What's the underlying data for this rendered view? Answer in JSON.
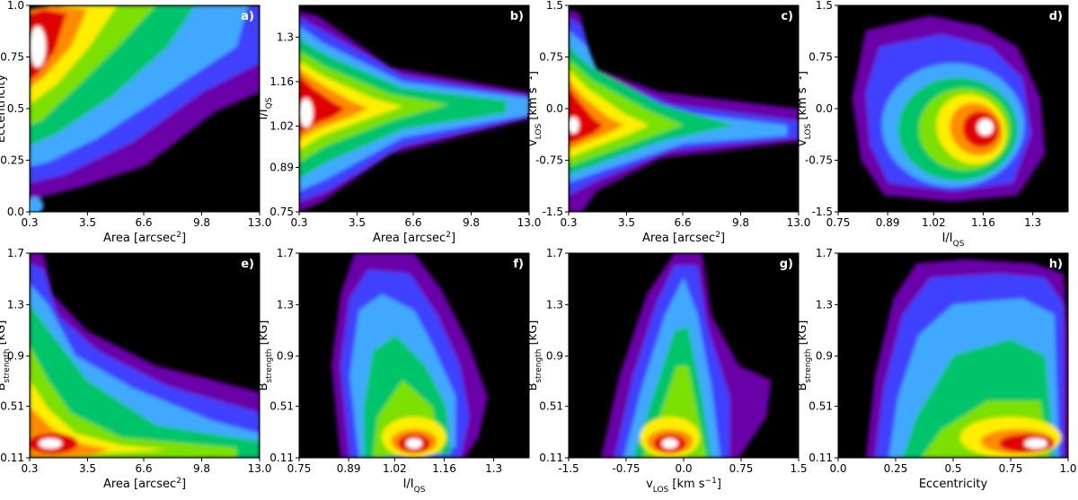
{
  "figure": {
    "colormap": [
      "#000000",
      "#6a00a8",
      "#3f3fff",
      "#3fa9ff",
      "#00c46a",
      "#7be000",
      "#ffee00",
      "#ff8c00",
      "#e00000",
      "#ffffff"
    ]
  },
  "chart_data": [
    {
      "panel_label": "a)",
      "type": "heatmap",
      "xlabel": {
        "main": "Area [arcsec",
        "sup": "2",
        "end": "]"
      },
      "ylabel": {
        "main": "Eccentricity"
      },
      "xlim": [
        0.3,
        13.0
      ],
      "ylim": [
        0.0,
        1.0
      ],
      "xticks": [
        0.3,
        3.5,
        6.6,
        9.8,
        13.0
      ],
      "xticklabels": [
        "0.3",
        "3.5",
        "6.6",
        "9.8",
        "13.0"
      ],
      "yticks": [
        0.0,
        0.25,
        0.5,
        0.75,
        1.0
      ],
      "yticklabels": [
        "0.0",
        "0.25",
        "0.5",
        "0.75",
        "1.0"
      ],
      "density_peaks": [
        {
          "x": 0.6,
          "y": 0.82,
          "value": 1.0
        }
      ]
    },
    {
      "panel_label": "b)",
      "type": "heatmap",
      "xlabel": {
        "main": "Area [arcsec",
        "sup": "2",
        "end": "]"
      },
      "ylabel": {
        "main": "I/I",
        "sub": "QS"
      },
      "xlim": [
        0.3,
        13.0
      ],
      "ylim": [
        0.75,
        1.4
      ],
      "xticks": [
        0.3,
        3.5,
        6.6,
        9.8,
        13.0
      ],
      "xticklabels": [
        "0.3",
        "3.5",
        "6.6",
        "9.8",
        "13.0"
      ],
      "yticks": [
        0.75,
        0.89,
        1.02,
        1.16,
        1.3
      ],
      "yticklabels": [
        "0.75",
        "0.89",
        "1.02",
        "1.16",
        "1.3"
      ],
      "density_peaks": [
        {
          "x": 0.6,
          "y": 1.06,
          "value": 1.0
        }
      ]
    },
    {
      "panel_label": "c)",
      "type": "heatmap",
      "xlabel": {
        "main": "Area [arcsec",
        "sup": "2",
        "end": "]"
      },
      "ylabel": {
        "main": "v",
        "sub": "LOS",
        "end": " [km s",
        "sup2": "−1",
        "end2": "]"
      },
      "xlim": [
        0.3,
        13.0
      ],
      "ylim": [
        -1.5,
        1.5
      ],
      "xticks": [
        0.3,
        3.5,
        6.6,
        9.8,
        13.0
      ],
      "xticklabels": [
        "0.3",
        "3.5",
        "6.6",
        "9.8",
        "13.0"
      ],
      "yticks": [
        -1.5,
        -0.75,
        0.0,
        0.75,
        1.5
      ],
      "yticklabels": [
        "-1.5",
        "-0.75",
        "0.0",
        "0.75",
        "1.5"
      ],
      "density_peaks": [
        {
          "x": 0.6,
          "y": -0.45,
          "value": 1.0
        }
      ]
    },
    {
      "panel_label": "d)",
      "type": "heatmap",
      "xlabel": {
        "main": "I/I",
        "sub": "QS"
      },
      "ylabel": {
        "main": "v",
        "sub": "LOS",
        "end": " [km s",
        "sup2": "−1",
        "end2": "]"
      },
      "xlim": [
        0.75,
        1.4
      ],
      "ylim": [
        -1.5,
        1.5
      ],
      "xticks": [
        0.75,
        0.89,
        1.02,
        1.16,
        1.3
      ],
      "xticklabels": [
        "0.75",
        "0.89",
        "1.02",
        "1.16",
        "1.3"
      ],
      "yticks": [
        -1.5,
        -0.75,
        0.0,
        0.75,
        1.5
      ],
      "yticklabels": [
        "-1.5",
        "-0.75",
        "0.0",
        "0.75",
        "1.5"
      ],
      "density_peaks": [
        {
          "x": 1.07,
          "y": -0.45,
          "value": 1.0
        }
      ]
    },
    {
      "panel_label": "e)",
      "type": "heatmap",
      "xlabel": {
        "main": "Area [arcsec",
        "sup": "2",
        "end": "]"
      },
      "ylabel": {
        "main": "B",
        "sub": "strength",
        "end": " [kG]"
      },
      "xlim": [
        0.3,
        13.0
      ],
      "ylim": [
        0.11,
        1.7
      ],
      "xticks": [
        0.3,
        3.5,
        6.6,
        9.8,
        13.0
      ],
      "xticklabels": [
        "0.3",
        "3.5",
        "6.6",
        "9.8",
        "13.0"
      ],
      "yticks": [
        0.11,
        0.51,
        0.9,
        1.3,
        1.7
      ],
      "yticklabels": [
        "0.11",
        "0.51",
        "0.9",
        "1.3",
        "1.7"
      ],
      "density_peaks": [
        {
          "x": 0.7,
          "y": 0.22,
          "value": 1.0
        }
      ]
    },
    {
      "panel_label": "f)",
      "type": "heatmap",
      "xlabel": {
        "main": "I/I",
        "sub": "QS"
      },
      "ylabel": {
        "main": "B",
        "sub": "strength",
        "end": " [kG]"
      },
      "xlim": [
        0.75,
        1.4
      ],
      "ylim": [
        0.11,
        1.7
      ],
      "xticks": [
        0.75,
        0.89,
        1.02,
        1.16,
        1.3
      ],
      "xticklabels": [
        "0.75",
        "0.89",
        "1.02",
        "1.16",
        "1.3"
      ],
      "yticks": [
        0.11,
        0.51,
        0.9,
        1.3,
        1.7
      ],
      "yticklabels": [
        "0.11",
        "0.51",
        "0.9",
        "1.3",
        "1.7"
      ],
      "density_peaks": [
        {
          "x": 1.06,
          "y": 0.22,
          "value": 1.0
        }
      ]
    },
    {
      "panel_label": "g)",
      "type": "heatmap",
      "xlabel": {
        "main": "v",
        "sub": "LOS",
        "end": " [km s",
        "sup2": "−1",
        "end2": "]"
      },
      "ylabel": {
        "main": "B",
        "sub": "strength",
        "end": " [kG]"
      },
      "xlim": [
        -1.5,
        1.5
      ],
      "ylim": [
        0.11,
        1.7
      ],
      "xticks": [
        -1.5,
        -0.75,
        0.0,
        0.75,
        1.5
      ],
      "xticklabels": [
        "-1.5",
        "-0.75",
        "0.0",
        "0.75",
        "1.5"
      ],
      "yticks": [
        0.11,
        0.51,
        0.9,
        1.3,
        1.7
      ],
      "yticklabels": [
        "0.11",
        "0.51",
        "0.9",
        "1.3",
        "1.7"
      ],
      "density_peaks": [
        {
          "x": -0.45,
          "y": 0.22,
          "value": 1.0
        }
      ]
    },
    {
      "panel_label": "h)",
      "type": "heatmap",
      "xlabel": {
        "main": "Eccentricity"
      },
      "ylabel": {
        "main": "B",
        "sub": "strength",
        "end": " [kG]"
      },
      "xlim": [
        0.0,
        1.0
      ],
      "ylim": [
        0.11,
        1.7
      ],
      "xticks": [
        0.0,
        0.25,
        0.5,
        0.75,
        1.0
      ],
      "xticklabels": [
        "0.0",
        "0.25",
        "0.5",
        "0.75",
        "1.0"
      ],
      "yticks": [
        0.11,
        0.51,
        0.9,
        1.3,
        1.7
      ],
      "yticklabels": [
        "0.11",
        "0.51",
        "0.9",
        "1.3",
        "1.7"
      ],
      "density_peaks": [
        {
          "x": 0.9,
          "y": 0.22,
          "value": 1.0
        }
      ]
    }
  ]
}
